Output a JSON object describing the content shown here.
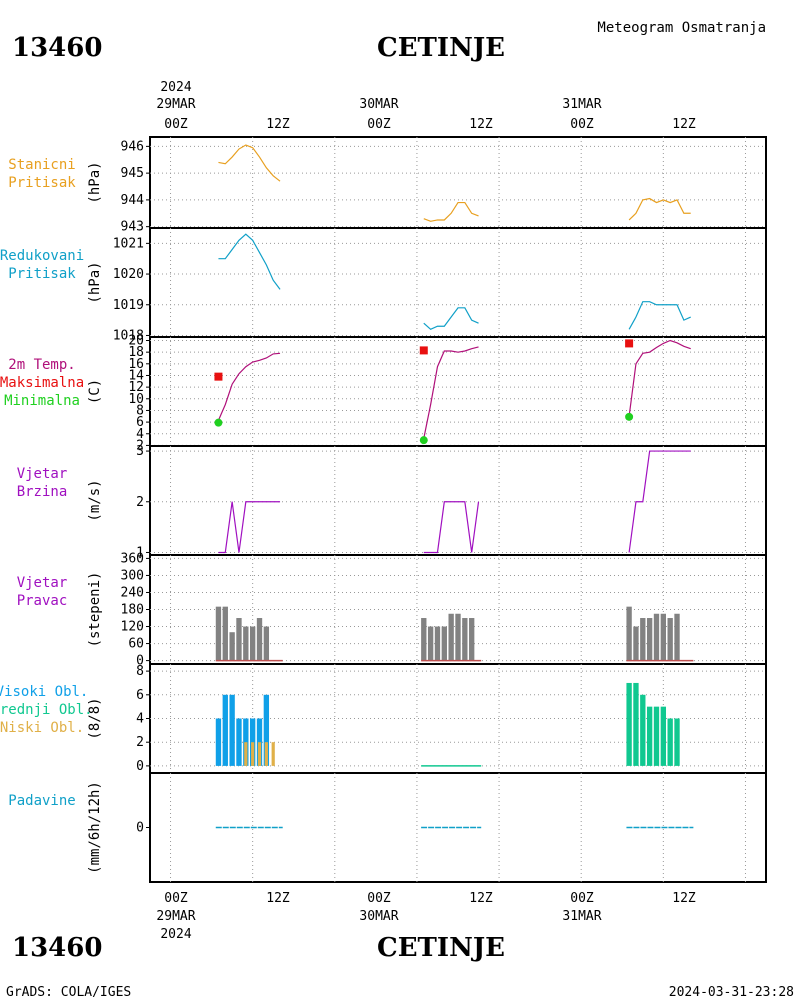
{
  "station_id": "13460",
  "station_name": "CETINJE",
  "meteogram_title": "Meteogram Osmatranja",
  "footer_left": "GrADS: COLA/IGES",
  "footer_right": "2024-03-31-23:28",
  "top_axis": {
    "year": "2024",
    "dates": [
      "29MAR",
      "30MAR",
      "31MAR"
    ],
    "hours": [
      "00Z",
      "12Z",
      "00Z",
      "12Z",
      "00Z",
      "12Z"
    ]
  },
  "bottom_axis": {
    "year": "2024",
    "dates": [
      "29MAR",
      "30MAR",
      "31MAR"
    ],
    "hours": [
      "00Z",
      "12Z",
      "00Z",
      "12Z",
      "00Z",
      "12Z"
    ]
  },
  "colors": {
    "station_pressure": "#e8a020",
    "reduced_pressure": "#10a0c8",
    "temp": "#b0107a",
    "tmax": "#e81010",
    "tmin": "#20d020",
    "wind": "#a010c0",
    "wind_dir_bar": "#828282",
    "high_cloud": "#10a0e8",
    "mid_cloud": "#10c890",
    "low_cloud": "#e0b048",
    "precip": "#10a0c8",
    "label_wind": "#a010c0",
    "label_precip": "#10a0c8"
  },
  "panels": {
    "station_pressure": {
      "label_lines": [
        "Stanicni",
        "Pritisak"
      ],
      "unit": "(hPa)",
      "ticks": [
        "946",
        "945",
        "944",
        "943"
      ]
    },
    "reduced_pressure": {
      "label_lines": [
        "Redukovani",
        "Pritisak"
      ],
      "unit": "(hPa)",
      "ticks": [
        "1021",
        "1020",
        "1019",
        "1018"
      ]
    },
    "temperature": {
      "label_lines": [
        "2m Temp.",
        "Maksimalna",
        "Minimalna"
      ],
      "unit": "(C)",
      "ticks": [
        "2",
        "4",
        "6",
        "8",
        "10",
        "12",
        "14",
        "16",
        "18",
        "20"
      ]
    },
    "wind_speed": {
      "label_lines": [
        "Vjetar",
        "Brzina"
      ],
      "unit": "(m/s)",
      "ticks": [
        "1",
        "2",
        "3"
      ]
    },
    "wind_dir": {
      "label_lines": [
        "Vjetar",
        "Pravac"
      ],
      "unit": "(stepeni)",
      "ticks": [
        "0",
        "60",
        "120",
        "180",
        "240",
        "300",
        "360"
      ]
    },
    "clouds": {
      "label_lines": [
        "Visoki Obl.",
        "Srednji Obl.",
        "Niski Obl."
      ],
      "unit": "(8/8)",
      "ticks": [
        "0",
        "2",
        "4",
        "6",
        "8"
      ]
    },
    "precip": {
      "label_lines": [
        "Padavine"
      ],
      "unit": "(mm/6h/12h)",
      "ticks": [
        "0"
      ]
    }
  },
  "chart_data": {
    "type": "line",
    "x_range_hours": [
      -3,
      87
    ],
    "x_unit": "hours since 2024-03-29 00Z",
    "station_pressure": [
      {
        "x": [
          7,
          8,
          9,
          10,
          11,
          12,
          13,
          14,
          15,
          16
        ],
        "y": [
          945.4,
          945.35,
          945.6,
          945.9,
          946.05,
          945.95,
          945.6,
          945.2,
          944.9,
          944.7
        ]
      },
      {
        "x": [
          37,
          38,
          39,
          40,
          41,
          42,
          43,
          44,
          45
        ],
        "y": [
          943.3,
          943.2,
          943.25,
          943.25,
          943.5,
          943.9,
          943.9,
          943.5,
          943.4
        ]
      },
      {
        "x": [
          67,
          68,
          69,
          70,
          71,
          72,
          73,
          74,
          75,
          76
        ],
        "y": [
          943.25,
          943.5,
          944.0,
          944.05,
          943.9,
          944.0,
          943.9,
          944.0,
          943.5,
          943.5
        ]
      }
    ],
    "reduced_pressure": [
      {
        "x": [
          7,
          8,
          9,
          10,
          11,
          12,
          13,
          14,
          15,
          16
        ],
        "y": [
          1020.5,
          1020.5,
          1020.8,
          1021.1,
          1021.3,
          1021.1,
          1020.7,
          1020.3,
          1019.8,
          1019.5
        ]
      },
      {
        "x": [
          37,
          38,
          39,
          40,
          41,
          42,
          43,
          44,
          45
        ],
        "y": [
          1018.4,
          1018.2,
          1018.3,
          1018.3,
          1018.6,
          1018.9,
          1018.9,
          1018.5,
          1018.4
        ]
      },
      {
        "x": [
          67,
          68,
          69,
          70,
          71,
          72,
          73,
          74,
          75,
          76
        ],
        "y": [
          1018.2,
          1018.6,
          1019.1,
          1019.1,
          1019.0,
          1019.0,
          1019.0,
          1019.0,
          1018.5,
          1018.6
        ]
      }
    ],
    "temperature": [
      {
        "x": [
          7,
          8,
          9,
          10,
          11,
          12,
          13,
          14,
          15,
          16
        ],
        "y": [
          6.3,
          9.0,
          12.5,
          14.3,
          15.5,
          16.3,
          16.6,
          17.0,
          17.7,
          17.8
        ]
      },
      {
        "x": [
          37,
          38,
          39,
          40,
          41,
          42,
          43,
          44,
          45
        ],
        "y": [
          3.2,
          9.0,
          15.5,
          18.2,
          18.2,
          18.0,
          18.2,
          18.6,
          18.9
        ]
      },
      {
        "x": [
          67,
          68,
          69,
          70,
          71,
          72,
          73,
          74,
          75,
          76
        ],
        "y": [
          7.0,
          16.0,
          17.8,
          18.0,
          18.8,
          19.5,
          20.0,
          19.6,
          19.0,
          18.6
        ]
      }
    ],
    "tmax": [
      {
        "x": 7,
        "y": 13.8
      },
      {
        "x": 37,
        "y": 18.3
      },
      {
        "x": 67,
        "y": 19.5
      }
    ],
    "tmin": [
      {
        "x": 7,
        "y": 5.9
      },
      {
        "x": 37,
        "y": 2.9
      },
      {
        "x": 67,
        "y": 6.9
      }
    ],
    "wind_speed": [
      {
        "x": [
          7,
          8,
          9,
          10,
          11,
          12,
          13,
          14,
          15,
          16
        ],
        "y": [
          1,
          1,
          2,
          1,
          2,
          2,
          2,
          2,
          2,
          2
        ]
      },
      {
        "x": [
          37,
          38,
          39,
          40,
          41,
          42,
          43,
          44,
          45
        ],
        "y": [
          1,
          1,
          1,
          2,
          2,
          2,
          2,
          1,
          2
        ]
      },
      {
        "x": [
          67,
          68,
          69,
          70,
          71,
          72,
          73,
          74,
          75,
          76
        ],
        "y": [
          1,
          2,
          2,
          3,
          3,
          3,
          3,
          3,
          3,
          3
        ]
      }
    ],
    "wind_dir": [
      {
        "x": [
          7,
          8,
          9,
          10,
          11,
          12,
          13,
          14,
          15,
          16
        ],
        "y": [
          190,
          190,
          100,
          150,
          120,
          120,
          150,
          120,
          0,
          0
        ]
      },
      {
        "x": [
          37,
          38,
          39,
          40,
          41,
          42,
          43,
          44,
          45
        ],
        "y": [
          150,
          120,
          120,
          120,
          165,
          165,
          150,
          150,
          0
        ]
      },
      {
        "x": [
          67,
          68,
          69,
          70,
          71,
          72,
          73,
          74,
          75,
          76
        ],
        "y": [
          190,
          120,
          150,
          150,
          165,
          165,
          150,
          165,
          0,
          0
        ]
      }
    ],
    "high_cloud": [
      {
        "x": [
          7,
          8,
          9,
          10,
          11,
          12,
          13,
          14,
          15,
          16
        ],
        "y": [
          4,
          6,
          6,
          4,
          4,
          4,
          4,
          6,
          0,
          0
        ]
      }
    ],
    "mid_cloud": [
      {
        "x": [
          67,
          68,
          69,
          70,
          71,
          72,
          73,
          74,
          75,
          76
        ],
        "y": [
          7,
          7,
          6,
          5,
          5,
          5,
          4,
          4,
          0,
          0
        ]
      }
    ],
    "low_cloud": [
      {
        "x": [
          11,
          12,
          13,
          14,
          15
        ],
        "y": [
          2,
          2,
          2,
          2,
          2
        ]
      }
    ],
    "precip": [
      {
        "x": [
          7,
          16
        ],
        "y": [
          0,
          0
        ]
      },
      {
        "x": [
          37,
          45
        ],
        "y": [
          0,
          0
        ]
      },
      {
        "x": [
          67,
          76
        ],
        "y": [
          0,
          0
        ]
      }
    ]
  }
}
